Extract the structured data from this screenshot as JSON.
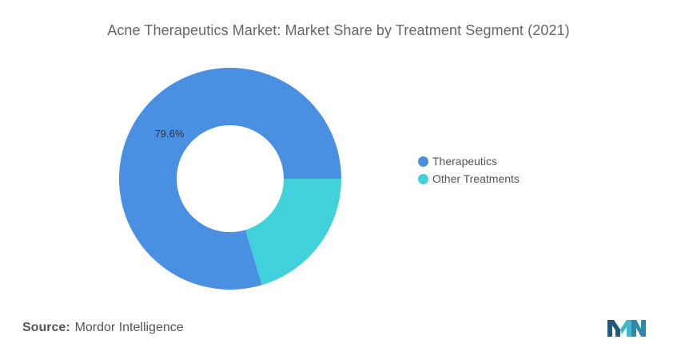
{
  "chart_data": {
    "type": "pie",
    "variant": "donut",
    "title": "Acne Therapeutics Market: Market Share by Treatment Segment (2021)",
    "categories": [
      "Therapeutics",
      "Other Treatments"
    ],
    "values": [
      79.6,
      20.4
    ],
    "data_labels": [
      "79.6%",
      ""
    ],
    "colors": [
      "#4a90e2",
      "#40d1db"
    ],
    "legend_position": "right"
  },
  "source": {
    "label": "Source:",
    "text": "Mordor Intelligence"
  },
  "logo": {
    "icon": "mordor-intelligence-logo-icon",
    "colors": [
      "#1f5a7a",
      "#3fb8c8"
    ]
  }
}
